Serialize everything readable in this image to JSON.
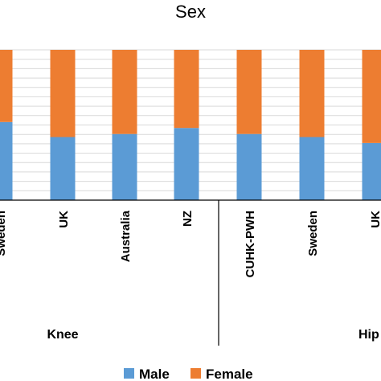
{
  "chart_data": {
    "type": "bar",
    "stacked": true,
    "title": "Sex",
    "categories": [
      "Sweden",
      "UK",
      "Australia",
      "NZ",
      "CUHK-PWH",
      "Sweden",
      "UK"
    ],
    "groups": [
      {
        "label": "Knee",
        "categories": [
          "Sweden",
          "UK",
          "Australia",
          "NZ"
        ]
      },
      {
        "label": "Hip",
        "categories": [
          "CUHK-PWH",
          "Sweden",
          "UK"
        ]
      }
    ],
    "series": [
      {
        "name": "Male",
        "color": "#5b9bd5",
        "values": [
          52,
          42,
          44,
          48,
          44,
          42,
          38
        ]
      },
      {
        "name": "Female",
        "color": "#ed7d31",
        "values": [
          48,
          58,
          56,
          52,
          56,
          58,
          62
        ]
      }
    ],
    "ylim": [
      0,
      100
    ],
    "grid": true,
    "legend_position": "bottom",
    "xlabel": "",
    "ylabel": ""
  }
}
